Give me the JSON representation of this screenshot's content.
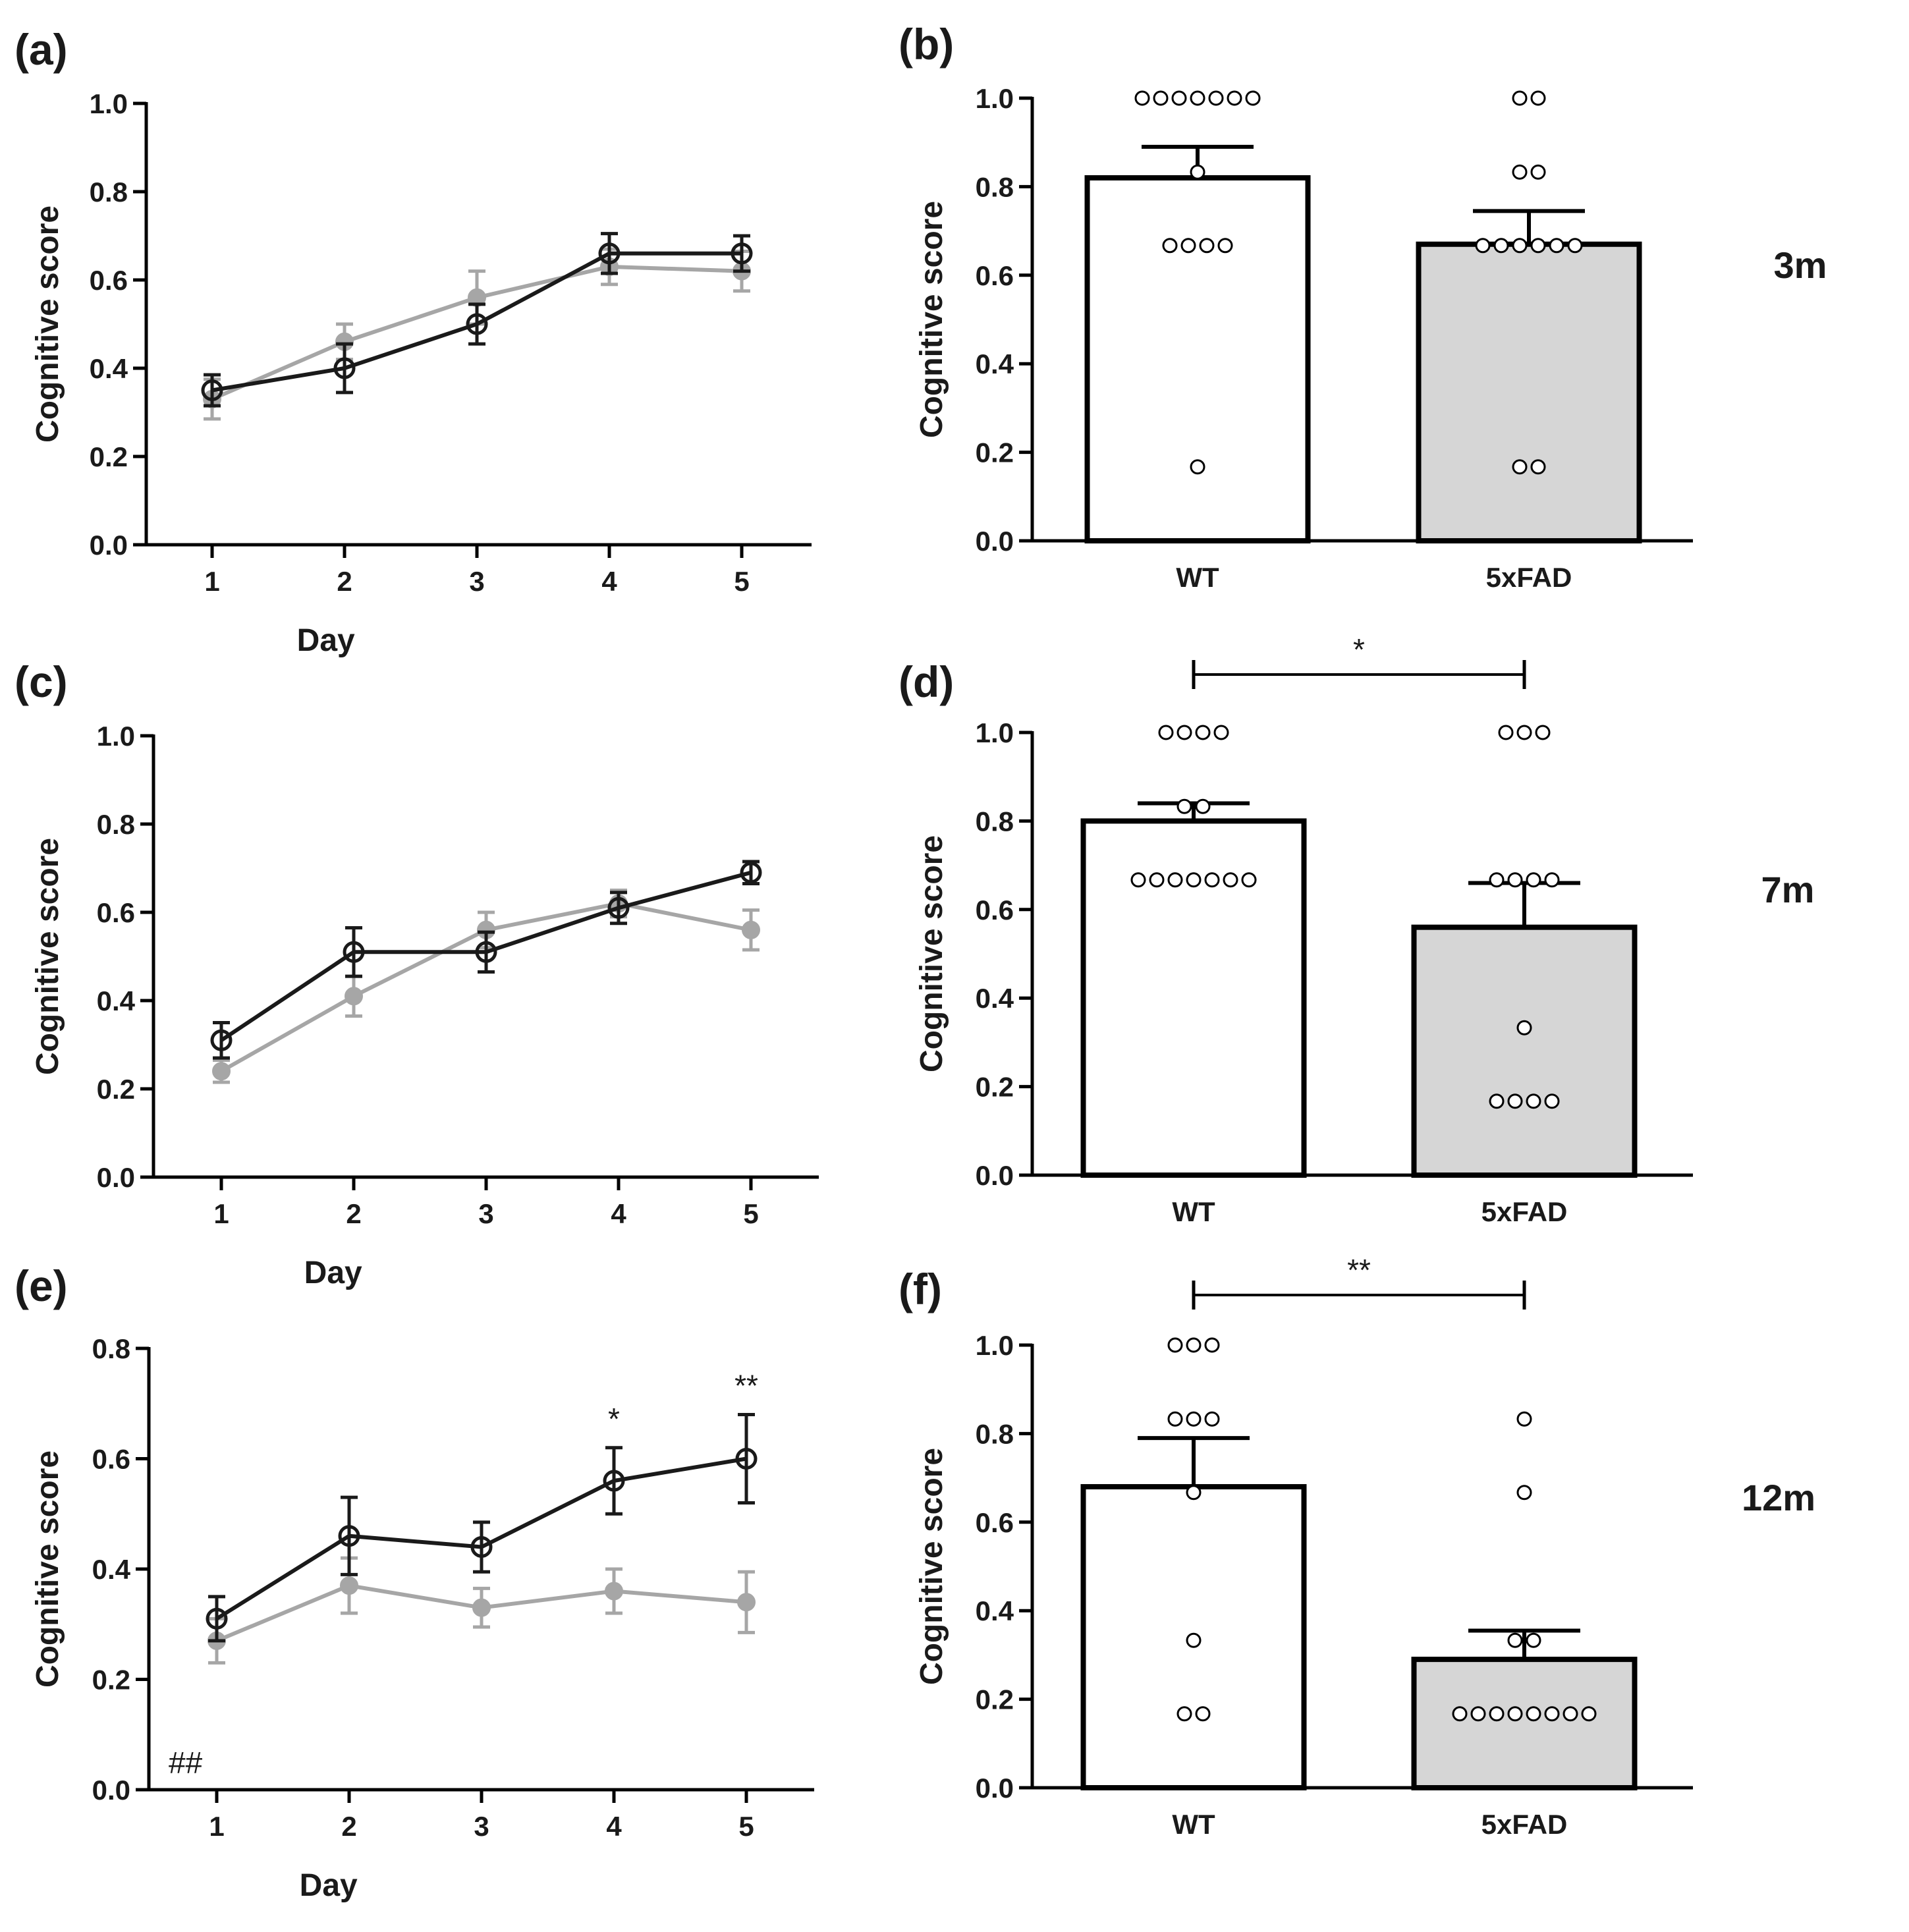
{
  "colors": {
    "wt": "#1a1a1a",
    "fad": "#a6a6a6",
    "wt_bar": "#ffffff",
    "fad_bar": "#d6d6d6"
  },
  "chart_data": [
    {
      "panel": "(a)",
      "type": "line",
      "xlabel": "Day",
      "ylabel": "Cognitive score",
      "x": [
        1,
        2,
        3,
        4,
        5
      ],
      "ylim": [
        0,
        1.0
      ],
      "yticks": [
        "0.0",
        "0.2",
        "0.4",
        "0.6",
        "0.8",
        "1.0"
      ],
      "xticks": [
        "1",
        "2",
        "3",
        "4",
        "5"
      ],
      "series": [
        {
          "name": "5xFAD",
          "marker": "filled",
          "values": [
            0.33,
            0.46,
            0.56,
            0.63,
            0.62
          ],
          "errors": [
            0.045,
            0.04,
            0.06,
            0.04,
            0.045
          ]
        },
        {
          "name": "WT",
          "marker": "open",
          "values": [
            0.35,
            0.4,
            0.5,
            0.66,
            0.66
          ],
          "errors": [
            0.035,
            0.055,
            0.045,
            0.045,
            0.04
          ]
        }
      ],
      "annotations": [],
      "corner_note": ""
    },
    {
      "panel": "(b)",
      "type": "bar",
      "ylabel": "Cognitive score",
      "ylim": [
        0,
        1.0
      ],
      "yticks": [
        "0.0",
        "0.2",
        "0.4",
        "0.6",
        "0.8",
        "1.0"
      ],
      "categories": [
        "WT",
        "5xFAD"
      ],
      "values": [
        0.82,
        0.67
      ],
      "errors": [
        0.07,
        0.075
      ],
      "points": [
        [
          1,
          1,
          1,
          1,
          1,
          1,
          1,
          0.833,
          0.667,
          0.667,
          0.667,
          0.667,
          0.167
        ],
        [
          1,
          1,
          0.833,
          0.833,
          0.667,
          0.667,
          0.667,
          0.667,
          0.667,
          0.667,
          0.167,
          0.167
        ]
      ],
      "significance": "",
      "age": "3m"
    },
    {
      "panel": "(c)",
      "type": "line",
      "xlabel": "Day",
      "ylabel": "Cognitive score",
      "x": [
        1,
        2,
        3,
        4,
        5
      ],
      "ylim": [
        0,
        1.0
      ],
      "yticks": [
        "0.0",
        "0.2",
        "0.4",
        "0.6",
        "0.8",
        "1.0"
      ],
      "xticks": [
        "1",
        "2",
        "3",
        "4",
        "5"
      ],
      "series": [
        {
          "name": "5xFAD",
          "marker": "filled",
          "values": [
            0.24,
            0.41,
            0.56,
            0.62,
            0.56
          ],
          "errors": [
            0.025,
            0.045,
            0.04,
            0.03,
            0.045
          ]
        },
        {
          "name": "WT",
          "marker": "open",
          "values": [
            0.31,
            0.51,
            0.51,
            0.61,
            0.69
          ],
          "errors": [
            0.04,
            0.055,
            0.045,
            0.035,
            0.025
          ]
        }
      ],
      "annotations": [],
      "corner_note": ""
    },
    {
      "panel": "(d)",
      "type": "bar",
      "ylabel": "Cognitive score",
      "ylim": [
        0,
        1.0
      ],
      "yticks": [
        "0.0",
        "0.2",
        "0.4",
        "0.6",
        "0.8",
        "1.0"
      ],
      "categories": [
        "WT",
        "5xFAD"
      ],
      "values": [
        0.8,
        0.56
      ],
      "errors": [
        0.04,
        0.1
      ],
      "points": [
        [
          1,
          1,
          1,
          1,
          0.833,
          0.833,
          0.667,
          0.667,
          0.667,
          0.667,
          0.667,
          0.667,
          0.667
        ],
        [
          1,
          1,
          1,
          0.667,
          0.667,
          0.667,
          0.667,
          0.333,
          0.167,
          0.167,
          0.167,
          0.167
        ]
      ],
      "significance": "*",
      "age": "7m"
    },
    {
      "panel": "(e)",
      "type": "line",
      "xlabel": "Day",
      "ylabel": "Cognitive score",
      "x": [
        1,
        2,
        3,
        4,
        5
      ],
      "ylim": [
        0,
        0.8
      ],
      "yticks": [
        "0.0",
        "0.2",
        "0.4",
        "0.6",
        "0.8"
      ],
      "xticks": [
        "1",
        "2",
        "3",
        "4",
        "5"
      ],
      "series": [
        {
          "name": "5xFAD",
          "marker": "filled",
          "values": [
            0.27,
            0.37,
            0.33,
            0.36,
            0.34
          ],
          "errors": [
            0.04,
            0.05,
            0.035,
            0.04,
            0.055
          ]
        },
        {
          "name": "WT",
          "marker": "open",
          "values": [
            0.31,
            0.46,
            0.44,
            0.56,
            0.6
          ],
          "errors": [
            0.04,
            0.07,
            0.045,
            0.06,
            0.08
          ]
        }
      ],
      "annotations": [
        {
          "x": 4,
          "text": "*"
        },
        {
          "x": 5,
          "text": "**"
        }
      ],
      "corner_note": "##"
    },
    {
      "panel": "(f)",
      "type": "bar",
      "ylabel": "Cognitive score",
      "ylim": [
        0,
        1.0
      ],
      "yticks": [
        "0.0",
        "0.2",
        "0.4",
        "0.6",
        "0.8",
        "1.0"
      ],
      "categories": [
        "WT",
        "5xFAD"
      ],
      "values": [
        0.68,
        0.29
      ],
      "errors": [
        0.11,
        0.065
      ],
      "points": [
        [
          1,
          1,
          1,
          0.833,
          0.833,
          0.833,
          0.667,
          0.333,
          0.167,
          0.167
        ],
        [
          0.833,
          0.667,
          0.333,
          0.333,
          0.167,
          0.167,
          0.167,
          0.167,
          0.167,
          0.167,
          0.167,
          0.167
        ]
      ],
      "significance": "**",
      "age": "12m"
    }
  ]
}
